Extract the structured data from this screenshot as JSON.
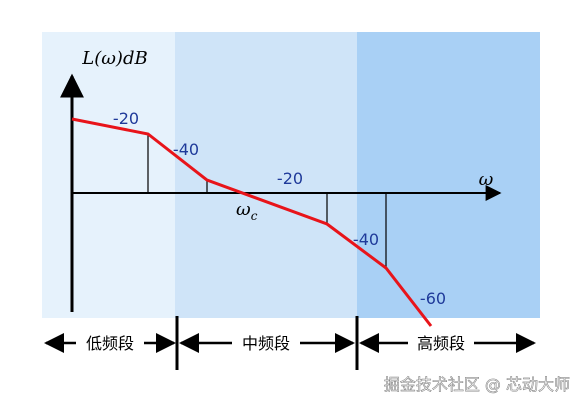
{
  "axes": {
    "y_label": "L(ω)dB",
    "x_label": "ω"
  },
  "slopes": [
    "-20",
    "-40",
    "-20",
    "-40",
    "-60"
  ],
  "crossover": {
    "symbol": "ω",
    "subscript": "c"
  },
  "bands": [
    "低频段",
    "中频段",
    "高频段"
  ],
  "watermark": "掘金技术社区 @ 芯动大师"
}
